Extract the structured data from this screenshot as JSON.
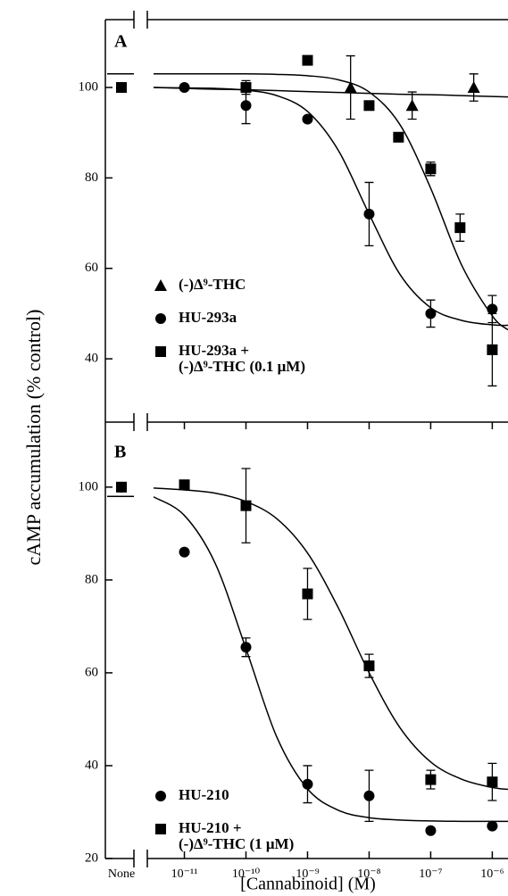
{
  "chart_data": [
    {
      "type": "scatter",
      "label": "A",
      "ylabel": "cAMP accumulation (% control)",
      "xlim": [
        2.5e-12,
        1.8e-06
      ],
      "log_x": true,
      "ylim": [
        26,
        115
      ],
      "yticks": [
        40,
        60,
        80,
        100
      ],
      "legend": "lower left",
      "fit_x": [
        "None",
        3.16e-12,
        1e-11,
        3.16e-11,
        1e-10,
        3.16e-10,
        1e-09,
        3.16e-09,
        1e-08,
        3.16e-08,
        1e-07,
        3.16e-07,
        1e-06,
        1.8e-06
      ],
      "series": [
        {
          "name": "(-)Δ⁹-THC",
          "marker": "triangle",
          "color": "#000000",
          "x": [
            5e-09,
            5e-08,
            5e-07
          ],
          "values": [
            100,
            96,
            100
          ],
          "errors": [
            7,
            3,
            3
          ],
          "fit": [
            null,
            100,
            99.8,
            99.6,
            99.5,
            99.3,
            99.1,
            98.9,
            98.7,
            98.5,
            98.4,
            98.2,
            98.0,
            97.9
          ]
        },
        {
          "name": "HU-293a",
          "marker": "circle",
          "color": "#000000",
          "x": [
            "None",
            1e-11,
            1e-10,
            1e-09,
            1e-08,
            1e-07,
            1e-06
          ],
          "values": [
            100,
            100,
            96,
            93,
            72,
            50,
            51
          ],
          "errors": [
            null,
            null,
            4,
            null,
            7,
            3,
            3
          ],
          "fit": [
            null,
            100,
            99.9,
            99.8,
            99.4,
            98.2,
            94.7,
            86.1,
            72.0,
            58.7,
            51.3,
            48.5,
            47.5,
            47.4
          ]
        },
        {
          "name": "HU-293a +\n(-)Δ⁹-THC (0.1 μM)",
          "marker": "square",
          "color": "#000000",
          "x": [
            "None",
            1e-10,
            1e-09,
            1e-08,
            3e-08,
            1e-07,
            3e-07,
            1e-06
          ],
          "values": [
            100,
            100,
            106,
            96,
            89,
            82,
            69,
            42
          ],
          "errors": [
            null,
            1.5,
            null,
            null,
            null,
            1.5,
            3,
            8
          ],
          "fit": [
            103,
            103,
            103,
            103,
            103,
            102.9,
            102.6,
            101.7,
            99.0,
            91.8,
            77.7,
            60.8,
            49.5,
            46.4
          ]
        }
      ]
    },
    {
      "type": "scatter",
      "label": "B",
      "xlabel": "[Cannabinoid] (M)",
      "xlim": [
        2.5e-12,
        1.8e-06
      ],
      "log_x": true,
      "ylim": [
        20,
        114
      ],
      "yticks": [
        20,
        40,
        60,
        80,
        100
      ],
      "xticks": [
        "None",
        {
          "value": 1e-11,
          "label": "10⁻¹¹"
        },
        {
          "value": 1e-10,
          "label": "10⁻¹⁰"
        },
        {
          "value": 1e-09,
          "label": "10⁻⁹"
        },
        {
          "value": 1e-08,
          "label": "10⁻⁸"
        },
        {
          "value": 1e-07,
          "label": "10⁻⁷"
        },
        {
          "value": 1e-06,
          "label": "10⁻⁶"
        }
      ],
      "legend": "lower left",
      "fit_x": [
        "None",
        3.16e-12,
        1e-11,
        3.16e-11,
        1e-10,
        3.16e-10,
        1e-09,
        3.16e-09,
        1e-08,
        3.16e-08,
        1e-07,
        3.16e-07,
        1e-06,
        1.8e-06
      ],
      "series": [
        {
          "name": "HU-210",
          "marker": "circle",
          "color": "#000000",
          "x": [
            "None",
            1e-11,
            1e-10,
            1e-09,
            1e-08,
            1e-07,
            1e-06
          ],
          "values": [
            100,
            86,
            65.5,
            36,
            33.5,
            26,
            27
          ],
          "errors": [
            null,
            null,
            2,
            4,
            5.5,
            null,
            null
          ],
          "fit": [
            98,
            97.9,
            93.9,
            83.6,
            65.2,
            46.2,
            35.0,
            30.4,
            28.8,
            28.3,
            28.1,
            28.0,
            28.0,
            28.0
          ]
        },
        {
          "name": "HU-210 +\n(-)Δ⁹-THC (1 μM)",
          "marker": "square",
          "color": "#000000",
          "x": [
            "None",
            1e-11,
            1e-10,
            1e-09,
            1e-08,
            1e-07,
            1e-06
          ],
          "values": [
            100,
            100.5,
            96,
            77,
            61.5,
            37,
            36.5
          ],
          "errors": [
            null,
            null,
            8,
            5.5,
            2.5,
            2,
            4
          ],
          "fit": [
            null,
            99.8,
            99.4,
            98.7,
            96.9,
            93.2,
            85.8,
            74.0,
            60.0,
            48.2,
            40.8,
            37.1,
            35.3,
            34.9
          ]
        }
      ]
    }
  ]
}
